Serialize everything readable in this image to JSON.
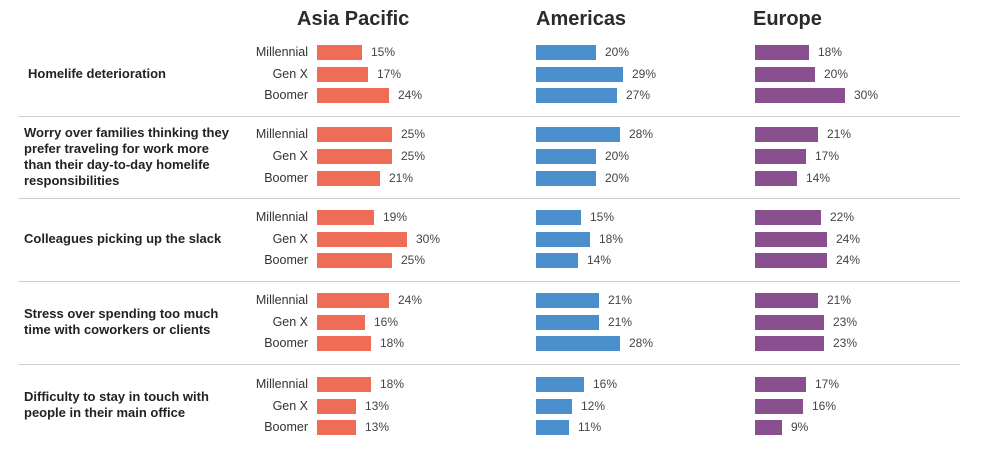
{
  "chart_data": {
    "type": "bar",
    "orientation": "horizontal",
    "regions": [
      "Asia Pacific",
      "Americas",
      "Europe"
    ],
    "generations": [
      "Millennial",
      "Gen X",
      "Boomer"
    ],
    "colors": {
      "Asia Pacific": "#ef6c56",
      "Americas": "#4a8fcc",
      "Europe": "#8a4f8f"
    },
    "categories": [
      {
        "label": "Homelife deterioration",
        "values": {
          "Asia Pacific": [
            15,
            17,
            24
          ],
          "Americas": [
            20,
            29,
            27
          ],
          "Europe": [
            18,
            20,
            30
          ]
        }
      },
      {
        "label": "Worry over families thinking they prefer traveling for work more than their day-to-day homelife responsibilities",
        "values": {
          "Asia Pacific": [
            25,
            25,
            21
          ],
          "Americas": [
            28,
            20,
            20
          ],
          "Europe": [
            21,
            17,
            14
          ]
        }
      },
      {
        "label": "Colleagues picking up the slack",
        "values": {
          "Asia Pacific": [
            19,
            30,
            25
          ],
          "Americas": [
            15,
            18,
            14
          ],
          "Europe": [
            22,
            24,
            24
          ]
        }
      },
      {
        "label": "Stress over spending too much time with coworkers or clients",
        "values": {
          "Asia Pacific": [
            24,
            16,
            18
          ],
          "Americas": [
            21,
            21,
            28
          ],
          "Europe": [
            21,
            23,
            23
          ]
        }
      },
      {
        "label": "Difficulty to stay in touch with people in their main office",
        "values": {
          "Asia Pacific": [
            18,
            13,
            13
          ],
          "Americas": [
            16,
            12,
            11
          ],
          "Europe": [
            17,
            16,
            9
          ]
        }
      }
    ],
    "value_suffix": "%",
    "grid": false,
    "legend": "none"
  }
}
